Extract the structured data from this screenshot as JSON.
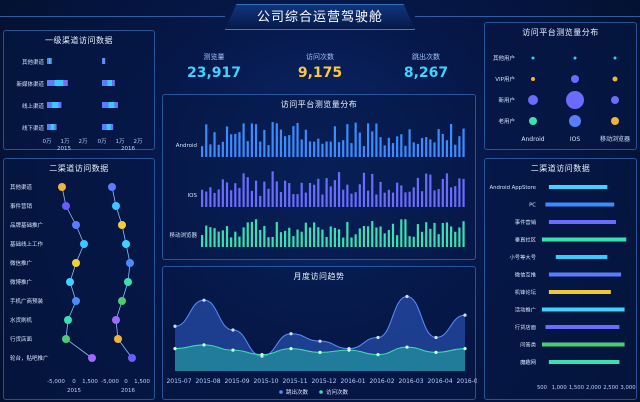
{
  "header": {
    "title": "公司综合运营驾驶舱"
  },
  "kpis": [
    {
      "label": "测览量",
      "value": "23,917",
      "color": "#3fd3ff"
    },
    {
      "label": "访问次数",
      "value": "9,175",
      "color": "#ffc83a"
    },
    {
      "label": "跳出次数",
      "value": "8,267",
      "color": "#3fd3ff"
    }
  ],
  "panels": {
    "level1": {
      "title": "一级渠道访问数据",
      "categories": [
        "其他渠道",
        "新媒体渠道",
        "线上渠道",
        "线下渠道"
      ],
      "ticks": [
        "0万",
        "1万",
        "2万"
      ],
      "year_left": "2015",
      "year_right": "2016"
    },
    "level2_left": {
      "title": "二渠道访问数据",
      "categories": [
        "其他渠道",
        "事件营销",
        "品牌基础推广",
        "基础线上工作",
        "微信推广",
        "微博推广",
        "手机广商预装",
        "水货刷机",
        "行货店面",
        "轮台，贴吧推广"
      ],
      "ticks": [
        "-5,000",
        "0",
        "1,500"
      ],
      "year_left": "2015",
      "year_right": "2016"
    },
    "platform": {
      "title": "访问平台测览量分布",
      "rows": [
        "Android",
        "IOS",
        "移动浏览器"
      ]
    },
    "monthly": {
      "title": "月度访问趋势",
      "months": [
        "2015-07",
        "2015-08",
        "2015-09",
        "2015-10",
        "2015-11",
        "2015-12",
        "2016-01",
        "2016-02",
        "2016-03",
        "2016-04",
        "2016-05"
      ],
      "legend": [
        "跳出次数",
        "访问次数"
      ]
    },
    "bubble": {
      "title": "访问平台测览量分布",
      "rows": [
        "其他用户",
        "VIP用户",
        "新用户",
        "老用户"
      ],
      "cols": [
        "Android",
        "IOS",
        "移动浏览器"
      ]
    },
    "level2_right": {
      "title": "二渠道访问数据",
      "categories": [
        "Android AppStore",
        "PC",
        "事件营销",
        "垂直社区",
        "小号等大号",
        "微信互推",
        "机锋论坛",
        "活动推广",
        "行货店面",
        "问答类",
        "魔趣网"
      ],
      "ticks": [
        "500",
        "1,000",
        "1,500",
        "2,000",
        "2,500",
        "3,000"
      ]
    }
  },
  "chart_data": [
    {
      "type": "bar",
      "title": "一级渠道访问数据",
      "categories": [
        "其他渠道",
        "新媒体渠道",
        "线上渠道",
        "线下渠道"
      ],
      "series": [
        {
          "name": "2015",
          "values": [
            0.3,
            1.3,
            0.9,
            0.6
          ]
        },
        {
          "name": "2016",
          "values": [
            0.2,
            0.8,
            1.0,
            0.7
          ]
        }
      ],
      "xlim": [
        0,
        2.5
      ]
    },
    {
      "type": "line",
      "title": "月度访问趋势",
      "categories": [
        "2015-07",
        "2015-08",
        "2015-09",
        "2015-10",
        "2015-11",
        "2015-12",
        "2016-01",
        "2016-02",
        "2016-03",
        "2016-04",
        "2016-05"
      ],
      "series": [
        {
          "name": "跳出次数",
          "values": [
            60,
            95,
            55,
            20,
            50,
            40,
            30,
            45,
            100,
            45,
            75
          ]
        },
        {
          "name": "访问次数",
          "values": [
            30,
            35,
            28,
            22,
            30,
            25,
            28,
            22,
            32,
            25,
            30
          ]
        }
      ]
    },
    {
      "type": "bar",
      "title": "二渠道访问数据",
      "categories": [
        "Android AppStore",
        "PC",
        "事件营销",
        "垂直社区",
        "小号等大号",
        "微信互推",
        "机锋论坛",
        "活动推广",
        "行货店面",
        "问答类",
        "魔趣网"
      ],
      "values": [
        2400,
        2600,
        2650,
        2950,
        2400,
        2800,
        2500,
        2900,
        2750,
        2900,
        2750
      ],
      "xlim": [
        500,
        3000
      ]
    }
  ]
}
